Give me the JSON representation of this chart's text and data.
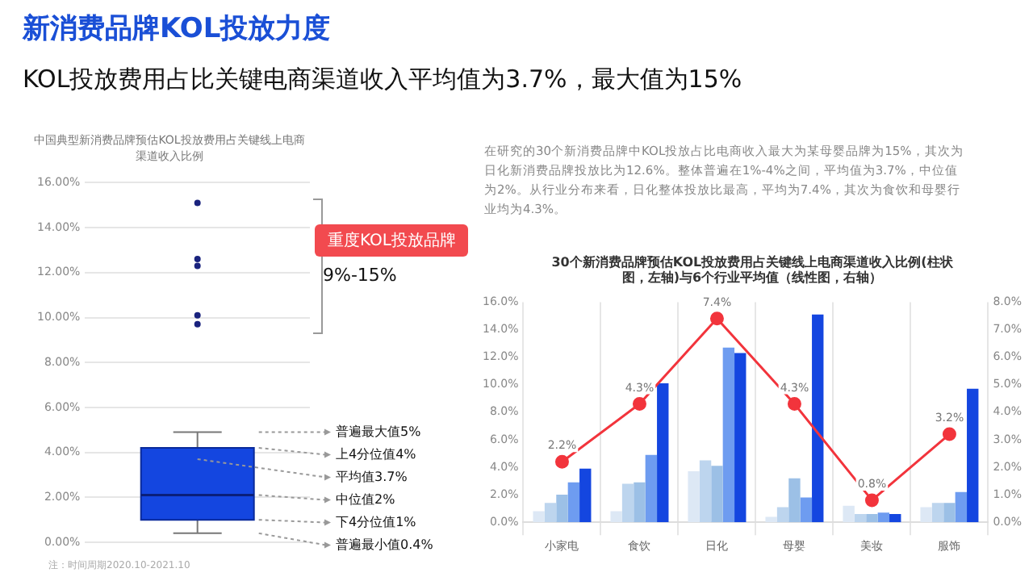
{
  "chart_data": [
    {
      "type": "other",
      "title": "新消费品牌KOL投放力度",
      "subtitle": "KOL投放费用占比关键电商渠道收入平均值为3.7%，最大值为15%",
      "annotations": [
        "在研究的30个新消费品牌中KOL投放占比电商收入最大为某母婴品牌为15%，其次为日化新消费品牌投放比为12.6%。整体普遍在1%-4%之间，平均值为3.7%，中位值为2%。从行业分布来看，日化整体投放比最高，平均为7.4%，其次为食饮和母婴行业均为4.3%。",
        "注：时间周期2020.10-2021.10"
      ]
    },
    {
      "type": "box",
      "title": "中国典型新消费品牌预估KOL投放费用占关键线上电商渠道收入比例",
      "categories": [
        null
      ],
      "color": "#1446e0",
      "boxes": [
        {
          "low": 0.4,
          "q1": 1.0,
          "median": 2.1,
          "q3": 4.2,
          "high": 4.9,
          "mean": 3.7,
          "outliers": [
            15.1,
            12.6,
            12.3,
            10.1,
            9.7
          ]
        }
      ],
      "ylim": [
        0,
        16
      ],
      "yticks": [
        {
          "value": 0,
          "label": "0.00%"
        },
        {
          "value": 2,
          "label": "2.00%"
        },
        {
          "value": 4,
          "label": "4.00%"
        },
        {
          "value": 6,
          "label": "6.00%"
        },
        {
          "value": 8,
          "label": "8.00%"
        },
        {
          "value": 10,
          "label": "10.00%"
        },
        {
          "value": 12,
          "label": "12.00%"
        },
        {
          "value": 14,
          "label": "14.00%"
        },
        {
          "value": 16,
          "label": "16.00%"
        }
      ],
      "grid": "y",
      "legend": false,
      "annotations": [
        "普遍最大值5%",
        "上4分位值4%",
        "平均值3.7%",
        "中位值2%",
        "下4分位值1%",
        "普遍最小值0.4%",
        "重度KOL投放品牌",
        "9%-15%"
      ]
    },
    {
      "type": "bar",
      "title": "30个新消费品牌预估KOL投放费用占关键线上电商渠道收入比例(柱状图，左轴)与6个行业平均值（线性图，右轴）",
      "categories": [
        "小家电",
        "食饮",
        "日化",
        "母婴",
        "美妆",
        "服饰"
      ],
      "series": [
        {
          "color": "#dde8f5",
          "values": [
            0.8,
            0.8,
            3.7,
            0.4,
            1.2,
            1.1
          ]
        },
        {
          "color": "#bdd5ee",
          "values": [
            1.4,
            2.8,
            4.5,
            1.1,
            0.6,
            1.4
          ]
        },
        {
          "color": "#9cc0e6",
          "values": [
            2.0,
            2.9,
            4.1,
            3.2,
            0.6,
            1.4
          ]
        },
        {
          "color": "#6e9cf0",
          "values": [
            2.9,
            4.9,
            12.7,
            1.8,
            0.7,
            2.2
          ]
        },
        {
          "color": "#1446e0",
          "values": [
            3.9,
            10.1,
            12.3,
            15.1,
            0.6,
            9.7
          ]
        },
        {
          "type": "line",
          "axis": "y2",
          "color": "#f2343c",
          "values": [
            2.2,
            4.3,
            7.4,
            4.3,
            0.8,
            3.2
          ],
          "value_labels": [
            "2.2%",
            "4.3%",
            "7.4%",
            "4.3%",
            "0.8%",
            "3.2%"
          ]
        }
      ],
      "ylim": [
        0,
        16
      ],
      "yticks": [
        {
          "value": 0,
          "label": "0.0%"
        },
        {
          "value": 2,
          "label": "2.0%"
        },
        {
          "value": 4,
          "label": "4.0%"
        },
        {
          "value": 6,
          "label": "6.0%"
        },
        {
          "value": 8,
          "label": "8.0%"
        },
        {
          "value": 10,
          "label": "10.0%"
        },
        {
          "value": 12,
          "label": "12.0%"
        },
        {
          "value": 14,
          "label": "14.0%"
        },
        {
          "value": 16,
          "label": "16.0%"
        }
      ],
      "y2lim": [
        0,
        8
      ],
      "y2ticks": [
        {
          "value": 0,
          "label": "0.0%"
        },
        {
          "value": 1,
          "label": "1.0%"
        },
        {
          "value": 2,
          "label": "2.0%"
        },
        {
          "value": 3,
          "label": "3.0%"
        },
        {
          "value": 4,
          "label": "4.0%"
        },
        {
          "value": 5,
          "label": "5.0%"
        },
        {
          "value": 6,
          "label": "6.0%"
        },
        {
          "value": 7,
          "label": "7.0%"
        },
        {
          "value": 8,
          "label": "8.0%"
        }
      ],
      "grid": "x",
      "legend": false,
      "marker": "circle",
      "line_style": "solid"
    }
  ]
}
